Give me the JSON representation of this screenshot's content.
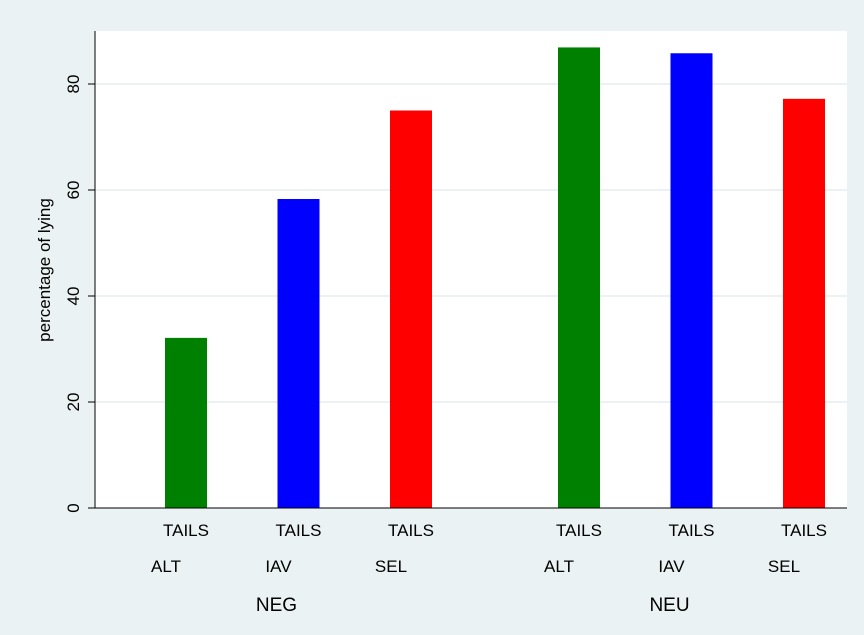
{
  "chart_data": {
    "type": "bar",
    "ylabel": "percentage of lying",
    "ylim": [
      0,
      90
    ],
    "yticks": [
      0,
      20,
      40,
      60,
      80
    ],
    "grid": true,
    "colors": {
      "background": "#eaf2f3",
      "plot_background": "#ffffff",
      "grid": "#e6eef0",
      "ALT": "#008000",
      "IAV": "#0000ff",
      "SEL": "#ff0000"
    },
    "groups": [
      {
        "label": "NEG",
        "bars": [
          {
            "tails": "TAILS",
            "category": "ALT",
            "value": 32.1
          },
          {
            "tails": "TAILS",
            "category": "IAV",
            "value": 58.3
          },
          {
            "tails": "TAILS",
            "category": "SEL",
            "value": 75.0
          }
        ]
      },
      {
        "label": "NEU",
        "bars": [
          {
            "tails": "TAILS",
            "category": "ALT",
            "value": 86.9
          },
          {
            "tails": "TAILS",
            "category": "IAV",
            "value": 85.8
          },
          {
            "tails": "TAILS",
            "category": "SEL",
            "value": 77.2
          }
        ]
      }
    ]
  }
}
